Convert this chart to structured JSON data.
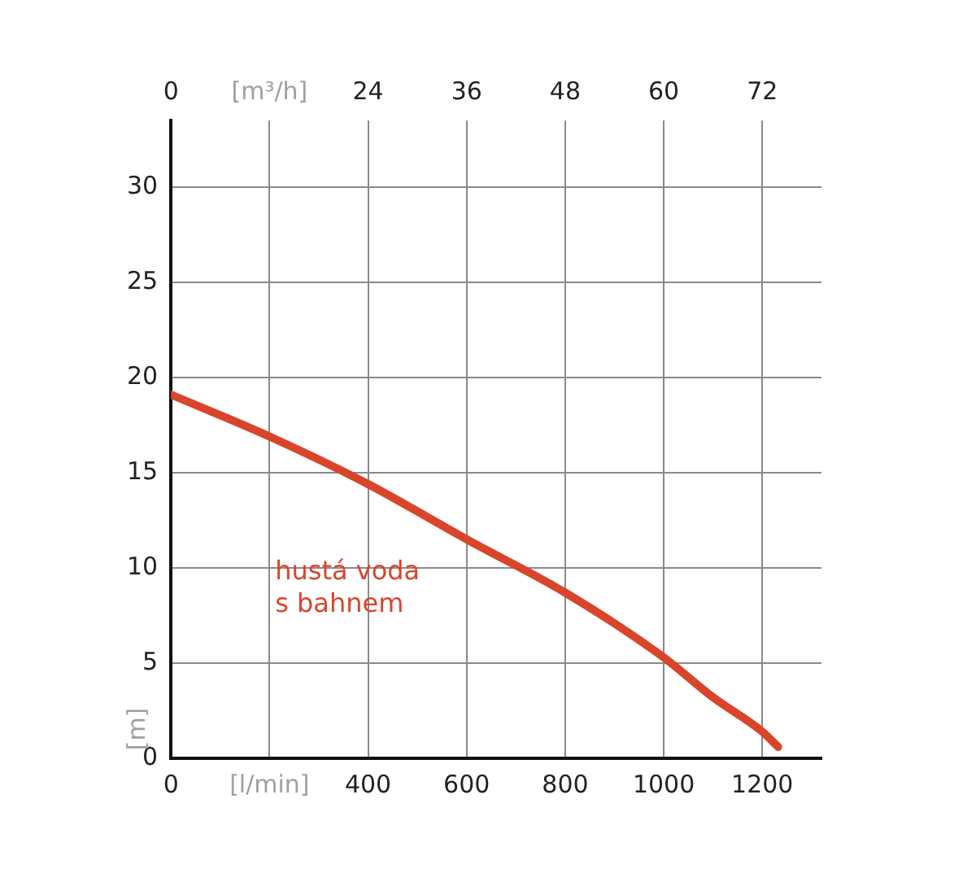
{
  "chart_data": {
    "type": "line",
    "ylabel": "[m]",
    "xlim": [
      0,
      1320
    ],
    "xticks": [
      0,
      {
        "value": 200,
        "label": "[l/min]"
      },
      400,
      600,
      800,
      1000,
      1200
    ],
    "x2lim": [
      0,
      79.2
    ],
    "x2ticks": [
      0,
      {
        "value": 12,
        "label": "[m³/h]"
      },
      24,
      36,
      48,
      60,
      72
    ],
    "ylim": [
      0,
      33.5
    ],
    "yticks": [
      0,
      5,
      10,
      15,
      20,
      25,
      30
    ],
    "grid": true,
    "legend": false,
    "marker": "none",
    "line_style": "solid",
    "series": [
      {
        "name": "hustá voda s bahnem",
        "color": "#d9452b",
        "x": [
          0,
          200,
          400,
          600,
          800,
          1000,
          1100,
          1200,
          1232
        ],
        "values": [
          19.1,
          16.9,
          14.4,
          11.5,
          8.7,
          5.3,
          3.2,
          1.4,
          0.6
        ]
      }
    ]
  }
}
